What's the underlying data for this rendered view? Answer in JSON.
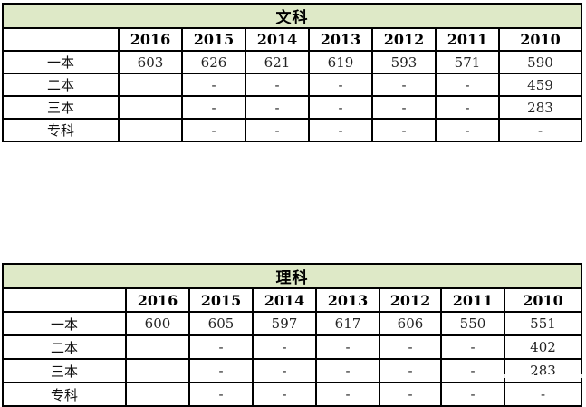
{
  "colors": {
    "background": "#ffffff",
    "title_row_fill": "#dee9c7",
    "border": "#000000",
    "header_text": "#000000",
    "value_text": "#222222",
    "watermark": "#ffffff"
  },
  "chart_data": [
    {
      "type": "table",
      "title": "文科",
      "columns": [
        "",
        "2016",
        "2015",
        "2014",
        "2013",
        "2012",
        "2011",
        "2010"
      ],
      "rows": [
        {
          "label": "一本",
          "values": [
            "603",
            "626",
            "621",
            "619",
            "593",
            "571",
            "590"
          ]
        },
        {
          "label": "二本",
          "values": [
            "",
            "-",
            "-",
            "-",
            "-",
            "-",
            "459"
          ]
        },
        {
          "label": "三本",
          "values": [
            "",
            "-",
            "-",
            "-",
            "-",
            "-",
            "283"
          ]
        },
        {
          "label": "专科",
          "values": [
            "",
            "-",
            "-",
            "-",
            "-",
            "-",
            "-"
          ]
        }
      ]
    },
    {
      "type": "table",
      "title": "理科",
      "columns": [
        "",
        "2016",
        "2015",
        "2014",
        "2013",
        "2012",
        "2011",
        "2010"
      ],
      "rows": [
        {
          "label": "一本",
          "values": [
            "600",
            "605",
            "597",
            "617",
            "606",
            "550",
            "551"
          ]
        },
        {
          "label": "二本",
          "values": [
            "",
            "-",
            "-",
            "-",
            "-",
            "-",
            "402"
          ]
        },
        {
          "label": "三本",
          "values": [
            "",
            "-",
            "-",
            "-",
            "-",
            "-",
            "283"
          ]
        },
        {
          "label": "专科",
          "values": [
            "",
            "-",
            "-",
            "-",
            "-",
            "-",
            "-"
          ]
        }
      ]
    }
  ]
}
